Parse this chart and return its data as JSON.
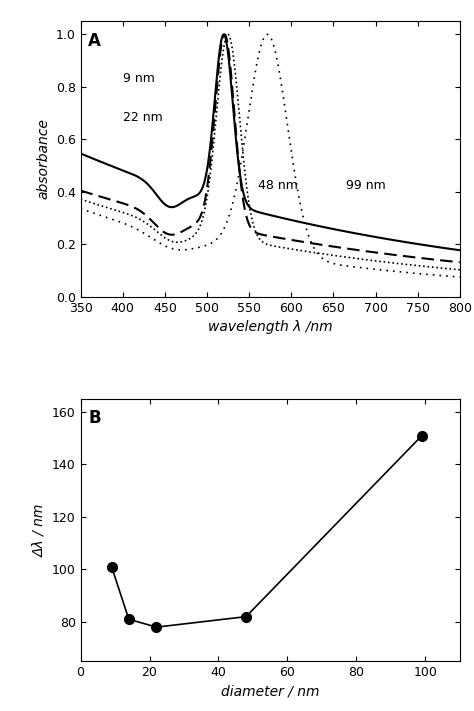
{
  "panel_A": {
    "title": "A",
    "xlabel": "wavelength λ /nm",
    "ylabel": "absorbance",
    "xlim": [
      350,
      800
    ],
    "ylim": [
      0,
      1.05
    ],
    "yticks": [
      0.0,
      0.2,
      0.4,
      0.6,
      0.8,
      1.0
    ],
    "xticks": [
      350,
      400,
      450,
      500,
      550,
      600,
      650,
      700,
      750,
      800
    ],
    "ann_9nm": [
      400,
      0.82,
      "9 nm"
    ],
    "ann_22nm": [
      400,
      0.67,
      "22 nm"
    ],
    "ann_48nm": [
      560,
      0.41,
      "48 nm"
    ],
    "ann_99nm": [
      665,
      0.41,
      "99 nm"
    ]
  },
  "panel_B": {
    "title": "B",
    "xlabel": "diameter / nm",
    "ylabel": "Δλ / nm",
    "xlim": [
      0,
      110
    ],
    "ylim": [
      65,
      165
    ],
    "yticks": [
      80,
      100,
      120,
      140,
      160
    ],
    "xticks": [
      0,
      20,
      40,
      60,
      80,
      100
    ],
    "x": [
      9,
      14,
      22,
      48,
      99
    ],
    "y": [
      101,
      81,
      78,
      82,
      151
    ]
  }
}
